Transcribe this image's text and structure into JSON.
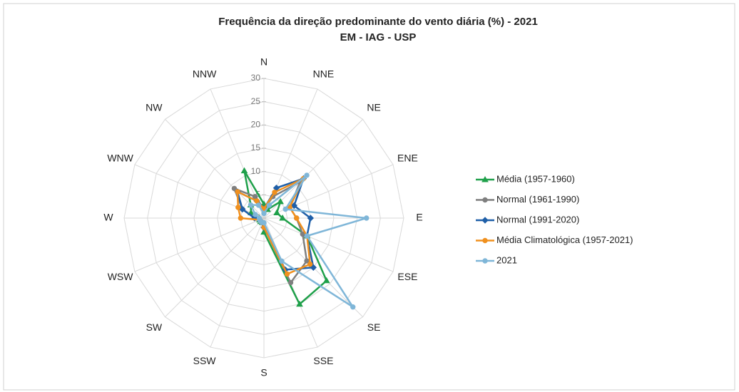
{
  "chart_data": {
    "type": "radar",
    "title": "Frequência da direção predominante do vento diária (%) - 2021",
    "subtitle": "EM - IAG - USP",
    "categories": [
      "N",
      "NNE",
      "NE",
      "ENE",
      "E",
      "ESE",
      "SE",
      "SSE",
      "S",
      "SSW",
      "SW",
      "WSW",
      "W",
      "WNW",
      "NW",
      "NNW"
    ],
    "ylim": [
      0,
      30
    ],
    "yticks": [
      0,
      5,
      10,
      15,
      20,
      25,
      30
    ],
    "grid": true,
    "legend": "right",
    "series": [
      {
        "name": "Média (1957-1960)",
        "color": "#1fa04a",
        "marker": "triangle",
        "values": [
          3,
          2,
          5,
          3,
          4,
          10,
          19,
          20,
          3,
          1,
          1,
          1,
          1,
          3,
          4,
          11
        ]
      },
      {
        "name": "Normal (1961-1990)",
        "color": "#7f7f7f",
        "marker": "circle",
        "values": [
          2,
          5,
          11,
          6,
          7,
          9,
          13,
          15,
          2,
          1,
          1,
          1,
          2,
          5,
          9,
          5
        ]
      },
      {
        "name": "Normal (1991-2020)",
        "color": "#1f5fa8",
        "marker": "diamond",
        "values": [
          2,
          7,
          12,
          7,
          10,
          10,
          15,
          12,
          2,
          1,
          1,
          1,
          2,
          5,
          8,
          4
        ]
      },
      {
        "name": "Média Climatológica (1957-2021)",
        "color": "#f0901e",
        "marker": "circle",
        "values": [
          2,
          6,
          12,
          6,
          7,
          10,
          14,
          13,
          2,
          1,
          1,
          1,
          5,
          6,
          8,
          4
        ]
      },
      {
        "name": "2021",
        "color": "#7fb6d8",
        "marker": "circle",
        "values": [
          1,
          3,
          13,
          5,
          22,
          10,
          27,
          10,
          1,
          1,
          1,
          1,
          1,
          2,
          4,
          3
        ]
      }
    ]
  }
}
